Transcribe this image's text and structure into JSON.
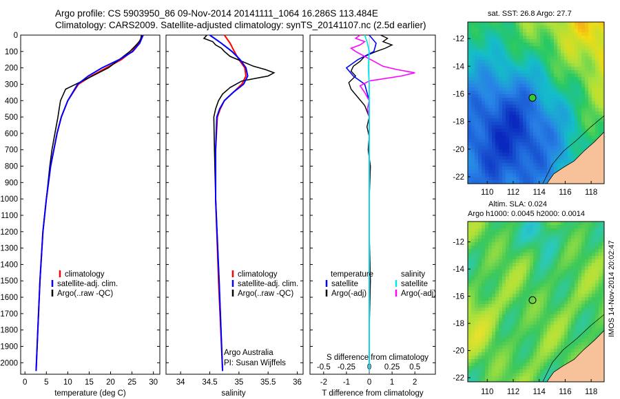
{
  "header": {
    "line1": "Argo profile: CS 5903950_86 09-Nov-2014 20141111_1064 16.286S 113.484E",
    "line2": "Climatology: CARS2009. Satellite-adjusted climatology: synTS_20141107.nc (2.5d earlier)"
  },
  "colors": {
    "climatology": "#ff0000",
    "satellite": "#0000ff",
    "argo": "#000000",
    "salinity_satellite": "#00e5ee",
    "salinity_argo": "#ff00ff",
    "land": "#f7c29a"
  },
  "depth_axis": {
    "ticks": [
      0,
      100,
      200,
      300,
      400,
      500,
      600,
      700,
      800,
      900,
      1000,
      1100,
      1200,
      1300,
      1400,
      1500,
      1600,
      1700,
      1800,
      1900,
      2000
    ],
    "range": [
      0,
      2070
    ]
  },
  "chart_data": [
    {
      "type": "line",
      "name": "temperature",
      "xlabel": "temperature (deg C)",
      "xlim": [
        -1,
        31.5
      ],
      "xticks": [
        0,
        5,
        10,
        15,
        20,
        25,
        30
      ],
      "ylim": [
        0,
        2070
      ],
      "legend": [
        "climatology",
        "satellite-adj. clim.",
        "Argo(..raw -QC)"
      ],
      "legend_position": "lower-middle",
      "series": [
        {
          "name": "climatology",
          "depth": [
            0,
            50,
            100,
            150,
            200,
            250,
            300,
            400,
            500,
            600,
            800,
            1000,
            1200,
            1500,
            1800,
            2050
          ],
          "values": [
            27.5,
            26.5,
            25.0,
            22.5,
            19.0,
            15.5,
            12.5,
            10.0,
            8.5,
            7.5,
            6.0,
            5.0,
            4.2,
            3.5,
            3.0,
            2.6
          ]
        },
        {
          "name": "satellite-adj. clim.",
          "depth": [
            0,
            50,
            100,
            150,
            200,
            250,
            300,
            400,
            500,
            600,
            800,
            1000,
            1200,
            1500,
            1800,
            2050
          ],
          "values": [
            27.6,
            26.8,
            25.2,
            22.0,
            18.0,
            14.8,
            12.3,
            10.0,
            8.5,
            7.5,
            6.0,
            5.0,
            4.2,
            3.5,
            3.0,
            2.6
          ]
        },
        {
          "name": "Argo(..raw -QC)",
          "depth": [
            0,
            30,
            60,
            100,
            150,
            200,
            260,
            330,
            400,
            450,
            500,
            600,
            700,
            800,
            1000,
            1200,
            1500,
            1800,
            2050
          ],
          "values": [
            27.2,
            27.0,
            26.0,
            24.5,
            22.0,
            19.5,
            15.0,
            9.5,
            8.3,
            8.0,
            7.7,
            7.0,
            6.3,
            5.8,
            5.0,
            4.2,
            3.5,
            3.0,
            2.6
          ]
        }
      ]
    },
    {
      "type": "line",
      "name": "salinity",
      "xlabel": "salinity",
      "xlim": [
        33.75,
        36.1
      ],
      "xticks": [
        34,
        34.5,
        35,
        35.5,
        36
      ],
      "ylim": [
        0,
        2070
      ],
      "legend": [
        "climatology",
        "satellite-adj. clim.",
        "Argo(..raw -QC)"
      ],
      "legend_position": "lower-right",
      "annotation": [
        "Argo Australia",
        "PI: Susan Wijffels"
      ],
      "series": [
        {
          "name": "climatology",
          "depth": [
            0,
            50,
            100,
            150,
            200,
            250,
            300,
            350,
            400,
            450,
            500,
            700,
            1000,
            1500,
            2050
          ],
          "values": [
            34.75,
            34.85,
            34.92,
            35.0,
            35.1,
            35.12,
            35.05,
            34.9,
            34.75,
            34.68,
            34.63,
            34.6,
            34.6,
            34.65,
            34.72
          ]
        },
        {
          "name": "satellite-adj. clim.",
          "depth": [
            0,
            50,
            100,
            150,
            200,
            250,
            300,
            350,
            400,
            450,
            500,
            700,
            1000,
            1500,
            2050
          ],
          "values": [
            34.5,
            34.7,
            34.88,
            35.02,
            35.12,
            35.15,
            35.08,
            34.9,
            34.75,
            34.67,
            34.62,
            34.6,
            34.6,
            34.66,
            34.72
          ]
        },
        {
          "name": "Argo(..raw -QC)",
          "depth": [
            0,
            20,
            40,
            60,
            80,
            100,
            130,
            160,
            190,
            210,
            230,
            250,
            280,
            320,
            360,
            400,
            450,
            500,
            700,
            1000,
            1500,
            2050
          ],
          "values": [
            34.45,
            34.4,
            34.55,
            34.6,
            34.7,
            34.75,
            34.85,
            35.05,
            35.25,
            35.45,
            35.6,
            35.5,
            35.05,
            34.85,
            34.72,
            34.65,
            34.6,
            34.57,
            34.58,
            34.6,
            34.66,
            34.72
          ]
        }
      ]
    },
    {
      "type": "line",
      "name": "difference",
      "xlabel": "T difference from climatology",
      "xlabel_top": "S difference from climatology",
      "xlim": [
        -2.6,
        2.9
      ],
      "xticks": [
        -2,
        -1,
        0,
        1,
        2
      ],
      "xticks_s": [
        -0.5,
        -0.25,
        0,
        0.25,
        0.5
      ],
      "ylim": [
        0,
        2070
      ],
      "legend_temperature": [
        "temperature",
        "satellite",
        "Argo(-adj)"
      ],
      "legend_salinity": [
        "salinity",
        "satellite",
        "Argo(-adj)"
      ],
      "series": [
        {
          "name": "T satellite",
          "depth": [
            0,
            50,
            100,
            150,
            200,
            250,
            300,
            400,
            600,
            2050
          ],
          "values": [
            0.0,
            0.3,
            0.2,
            -0.5,
            -1.0,
            -0.7,
            -0.2,
            0.0,
            0.0,
            0.0
          ]
        },
        {
          "name": "T Argo(-adj)",
          "depth": [
            0,
            20,
            40,
            60,
            80,
            100,
            130,
            160,
            190,
            220,
            250,
            290,
            330,
            380,
            430,
            500,
            560,
            620,
            700,
            800,
            1000,
            1200,
            1500,
            1800,
            2050
          ],
          "values": [
            0.5,
            0.8,
            0.6,
            1.0,
            0.7,
            0.3,
            -0.2,
            -0.4,
            -0.7,
            -0.8,
            -0.6,
            -0.9,
            -0.8,
            -0.5,
            -0.2,
            0.0,
            -0.1,
            0.0,
            -0.05,
            0.05,
            0.0,
            0.0,
            0.05,
            0.0,
            0.0
          ]
        },
        {
          "name": "S satellite",
          "depth": [
            0,
            50,
            100,
            200,
            300,
            400,
            600,
            2050
          ],
          "values": [
            -0.05,
            -0.02,
            0.0,
            -0.01,
            0.0,
            0.0,
            0.0,
            0.0
          ]
        },
        {
          "name": "S Argo(-adj)",
          "depth": [
            0,
            20,
            40,
            60,
            80,
            100,
            130,
            160,
            190,
            210,
            230,
            250,
            280,
            310,
            350,
            400,
            450,
            500,
            700,
            1000,
            1500,
            2050
          ],
          "values": [
            -0.1,
            -0.15,
            -0.05,
            -0.1,
            -0.2,
            -0.15,
            -0.05,
            0.05,
            0.15,
            0.3,
            0.5,
            0.35,
            0.0,
            -0.1,
            -0.05,
            0.0,
            -0.02,
            0.0,
            0.0,
            0.0,
            0.0,
            0.0
          ]
        }
      ]
    },
    {
      "type": "heatmap",
      "name": "sst-map",
      "title": "sat. SST: 26.8 Argo: 27.7",
      "x_range": [
        108.5,
        119
      ],
      "y_range": [
        -22.5,
        -10.8
      ],
      "xticks": [
        110,
        112,
        114,
        116,
        118
      ],
      "yticks": [
        -12,
        -14,
        -16,
        -18,
        -20,
        -22
      ],
      "marker": {
        "lon": 113.484,
        "lat": -16.286
      }
    },
    {
      "type": "heatmap",
      "name": "altimetry-map",
      "title": [
        "Altim. SLA: 0.024",
        "Argo h1000: 0.0045 h2000: 0.0014"
      ],
      "x_range": [
        108.5,
        119
      ],
      "y_range": [
        -22.3,
        -10.5
      ],
      "xticks": [
        110,
        112,
        114,
        116,
        118
      ],
      "yticks": [
        -12,
        -14,
        -16,
        -18,
        -20,
        -22
      ],
      "marker": {
        "lon": 113.484,
        "lat": -16.286
      }
    }
  ],
  "footer": {
    "stamp": "IMOS 14-Nov-2014 20:02:47"
  }
}
